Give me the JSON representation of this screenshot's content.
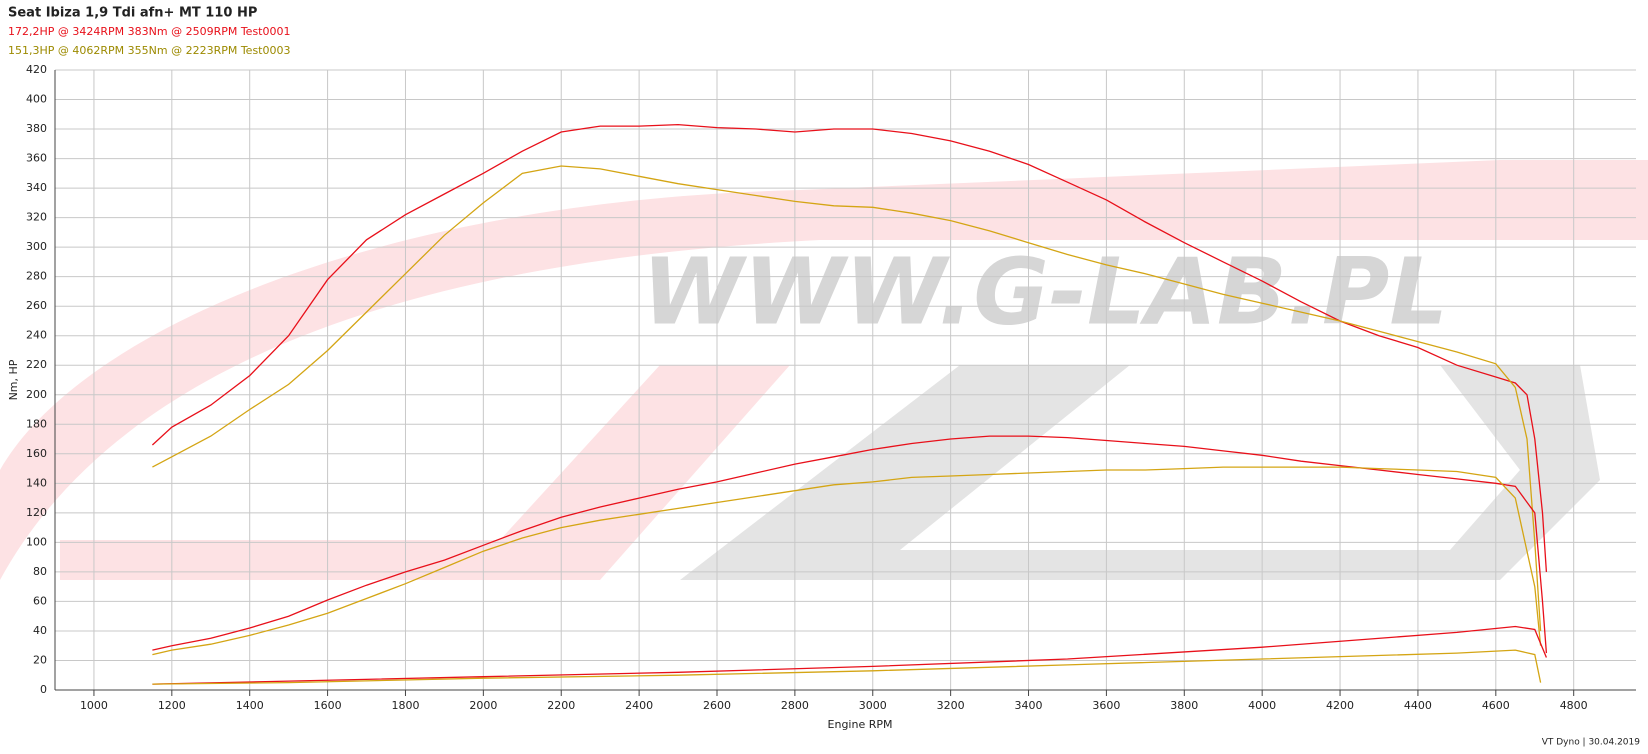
{
  "chart_data": {
    "type": "line",
    "title": "Seat Ibiza 1,9 Tdi afn+ MT 110 HP",
    "legend_lines": [
      {
        "text": "172,2HP @  3424RPM  383Nm @ 2509RPM  Test0001",
        "color": "#e8101a"
      },
      {
        "text": "151,3HP @  4062RPM  355Nm @ 2223RPM  Test0003",
        "color": "#9c8a00"
      }
    ],
    "xlabel": "Engine RPM",
    "ylabel": "Nm, HP",
    "watermark": "WWW.G-LAB.PL",
    "footer": "VT Dyno | 30.04.2019",
    "xlim": [
      900,
      4960
    ],
    "ylim": [
      0,
      420
    ],
    "xticks": [
      1000,
      1200,
      1400,
      1600,
      1800,
      2000,
      2200,
      2400,
      2600,
      2800,
      3000,
      3200,
      3400,
      3600,
      3800,
      4000,
      4200,
      4400,
      4600,
      4800
    ],
    "yticks": [
      0,
      20,
      40,
      60,
      80,
      100,
      120,
      140,
      160,
      180,
      200,
      220,
      240,
      260,
      280,
      300,
      320,
      340,
      360,
      380,
      400,
      420
    ],
    "grid": true,
    "series": [
      {
        "color": "#e8101a",
        "x": [
          1150,
          1200,
          1300,
          1400,
          1500,
          1600,
          1700,
          1800,
          1900,
          2000,
          2100,
          2200,
          2300,
          2400,
          2500,
          2600,
          2700,
          2800,
          2900,
          3000,
          3100,
          3200,
          3300,
          3400,
          3500,
          3600,
          3700,
          3800,
          3900,
          4000,
          4100,
          4200,
          4300,
          4400,
          4500,
          4600,
          4650,
          4680,
          4700,
          4720,
          4730
        ],
        "values": [
          166,
          178,
          193,
          213,
          240,
          278,
          305,
          322,
          336,
          350,
          365,
          378,
          382,
          382,
          383,
          381,
          380,
          378,
          380,
          380,
          377,
          372,
          365,
          356,
          344,
          332,
          317,
          303,
          290,
          277,
          263,
          250,
          240,
          232,
          220,
          212,
          208,
          200,
          170,
          120,
          80
        ]
      },
      {
        "color": "#d4a514",
        "x": [
          1150,
          1200,
          1300,
          1400,
          1500,
          1600,
          1700,
          1800,
          1900,
          2000,
          2100,
          2200,
          2300,
          2400,
          2500,
          2600,
          2700,
          2800,
          2900,
          3000,
          3100,
          3200,
          3300,
          3400,
          3500,
          3600,
          3700,
          3800,
          3900,
          4000,
          4100,
          4200,
          4300,
          4400,
          4500,
          4600,
          4650,
          4680,
          4700,
          4715
        ],
        "values": [
          151,
          158,
          172,
          190,
          207,
          230,
          256,
          282,
          308,
          330,
          350,
          355,
          353,
          348,
          343,
          339,
          335,
          331,
          328,
          327,
          323,
          318,
          311,
          303,
          295,
          288,
          282,
          275,
          268,
          262,
          256,
          250,
          243,
          236,
          229,
          221,
          205,
          170,
          100,
          40
        ]
      },
      {
        "color": "#e8101a",
        "x": [
          1150,
          1200,
          1300,
          1400,
          1500,
          1600,
          1700,
          1800,
          1900,
          2000,
          2100,
          2200,
          2300,
          2400,
          2500,
          2600,
          2700,
          2800,
          2900,
          3000,
          3100,
          3200,
          3300,
          3400,
          3500,
          3600,
          3700,
          3800,
          3900,
          4000,
          4100,
          4200,
          4300,
          4400,
          4500,
          4600,
          4650,
          4700,
          4720,
          4730
        ],
        "values": [
          27,
          30,
          35,
          42,
          50,
          61,
          71,
          80,
          88,
          98,
          108,
          117,
          124,
          130,
          136,
          141,
          147,
          153,
          158,
          163,
          167,
          170,
          172,
          172,
          171,
          169,
          167,
          165,
          162,
          159,
          155,
          152,
          149,
          146,
          143,
          140,
          138,
          120,
          60,
          25
        ]
      },
      {
        "color": "#d4a514",
        "x": [
          1150,
          1200,
          1300,
          1400,
          1500,
          1600,
          1700,
          1800,
          1900,
          2000,
          2100,
          2200,
          2300,
          2400,
          2500,
          2600,
          2700,
          2800,
          2900,
          3000,
          3100,
          3200,
          3300,
          3400,
          3500,
          3600,
          3700,
          3800,
          3900,
          4000,
          4100,
          4200,
          4300,
          4400,
          4500,
          4600,
          4650,
          4700,
          4715
        ],
        "values": [
          24,
          27,
          31,
          37,
          44,
          52,
          62,
          72,
          83,
          94,
          103,
          110,
          115,
          119,
          123,
          127,
          131,
          135,
          139,
          141,
          144,
          145,
          146,
          147,
          148,
          149,
          149,
          150,
          151,
          151,
          151,
          151,
          150,
          149,
          148,
          144,
          130,
          70,
          30
        ]
      },
      {
        "color": "#e8101a",
        "x": [
          1150,
          1500,
          2000,
          2500,
          3000,
          3500,
          4000,
          4500,
          4650,
          4700,
          4730
        ],
        "values": [
          4,
          6,
          9,
          12,
          16,
          21,
          29,
          39,
          43,
          41,
          22
        ]
      },
      {
        "color": "#d4a514",
        "x": [
          1150,
          1500,
          2000,
          2500,
          3000,
          3500,
          4000,
          4500,
          4650,
          4700,
          4715
        ],
        "values": [
          4,
          5,
          8,
          10,
          13,
          17,
          21,
          25,
          27,
          24,
          5
        ]
      }
    ]
  }
}
